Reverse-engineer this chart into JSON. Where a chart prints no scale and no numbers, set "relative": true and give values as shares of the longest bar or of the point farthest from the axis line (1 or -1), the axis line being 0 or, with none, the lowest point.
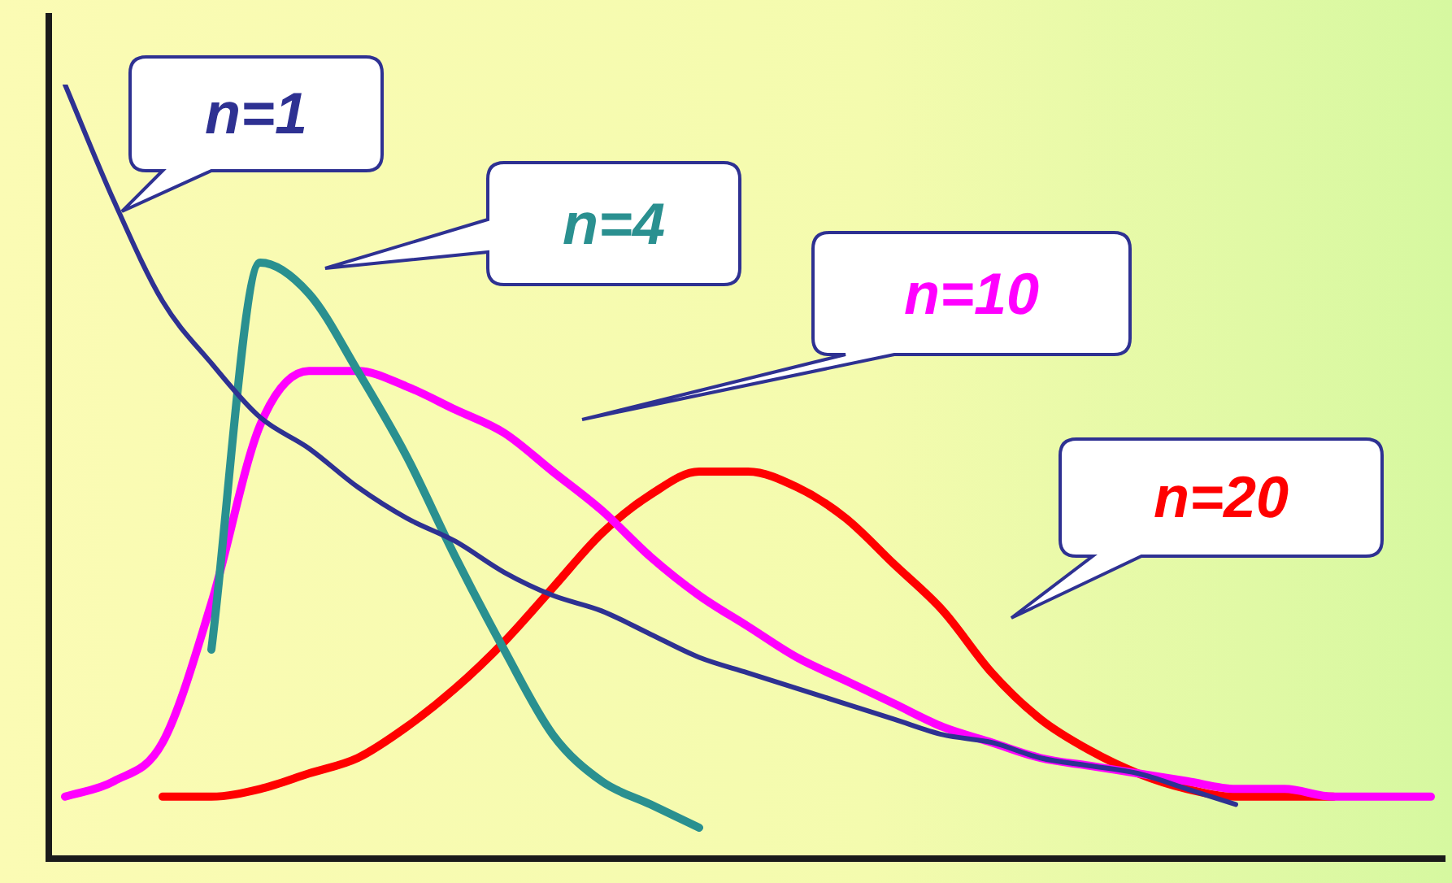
{
  "chart_data": {
    "type": "line",
    "relative": true,
    "marker": "none",
    "categories": [
      null,
      null,
      null,
      null,
      null,
      null,
      null,
      null,
      null,
      null,
      null,
      null,
      null,
      null,
      null,
      null,
      null,
      null,
      null,
      null,
      null,
      null,
      null,
      null,
      null,
      null,
      null,
      null,
      null
    ],
    "series": [
      {
        "name": "n=1",
        "color": "#2e3192",
        "values": [
          1.0,
          0.85,
          0.72,
          0.64,
          0.57,
          0.53,
          0.48,
          0.44,
          0.41,
          0.37,
          0.34,
          0.32,
          0.29,
          0.26,
          0.24,
          0.22,
          0.2,
          0.18,
          0.16,
          0.15,
          0.13,
          0.12,
          0.11,
          0.09,
          0.07,
          null,
          null,
          null,
          null
        ]
      },
      {
        "name": "n=4",
        "color": "#2a9090",
        "values": [
          null,
          null,
          null,
          0.27,
          0.77,
          0.73,
          0.63,
          0.52,
          0.39,
          0.27,
          0.16,
          0.1,
          0.07,
          0.04,
          null,
          null,
          null,
          null,
          null,
          null,
          null,
          null,
          null,
          null,
          null,
          null,
          null,
          null,
          null
        ]
      },
      {
        "name": "n=10",
        "color": "#ff00ff",
        "values": [
          0.08,
          0.1,
          0.15,
          0.33,
          0.56,
          0.63,
          0.63,
          0.61,
          0.58,
          0.55,
          0.5,
          0.45,
          0.39,
          0.34,
          0.3,
          0.26,
          0.23,
          0.2,
          0.17,
          0.15,
          0.13,
          0.12,
          0.11,
          0.1,
          0.09,
          0.09,
          0.08,
          0.08,
          0.08
        ]
      },
      {
        "name": "n=20",
        "color": "#ff0000",
        "values": [
          null,
          null,
          0.08,
          0.08,
          0.09,
          0.11,
          0.13,
          0.17,
          0.22,
          0.28,
          0.35,
          0.42,
          0.47,
          0.5,
          0.5,
          0.48,
          0.44,
          0.38,
          0.32,
          0.24,
          0.18,
          0.14,
          0.11,
          0.09,
          0.08,
          0.08,
          0.08,
          null,
          null
        ]
      }
    ]
  }
}
